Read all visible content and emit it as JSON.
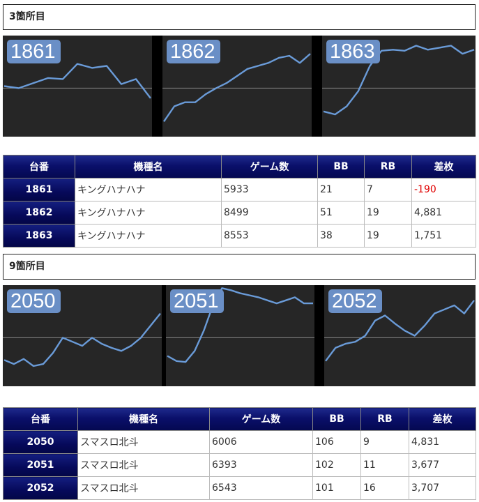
{
  "sections": [
    {
      "title": "3箇所目",
      "columns": [
        "台番",
        "機種名",
        "ゲーム数",
        "BB",
        "RB",
        "差枚"
      ],
      "machines": [
        {
          "number": "1861",
          "name": "キングハナハナ",
          "games": "5933",
          "bb": "21",
          "rb": "7",
          "diff": "-190",
          "diff_negative": true
        },
        {
          "number": "1862",
          "name": "キングハナハナ",
          "games": "8499",
          "bb": "51",
          "rb": "19",
          "diff": "4,881",
          "diff_negative": false
        },
        {
          "number": "1863",
          "name": "キングハナハナ",
          "games": "8553",
          "bb": "38",
          "rb": "19",
          "diff": "1,751",
          "diff_negative": false
        }
      ],
      "graphs": [
        {
          "label": "1861",
          "trend": [
            0.5,
            0.48,
            0.53,
            0.58,
            0.57,
            0.72,
            0.68,
            0.7,
            0.52,
            0.57,
            0.38
          ]
        },
        {
          "label": "1862",
          "trend": [
            0.15,
            0.3,
            0.34,
            0.34,
            0.42,
            0.48,
            0.53,
            0.6,
            0.67,
            0.7,
            0.73,
            0.78,
            0.8,
            0.73,
            0.82
          ]
        },
        {
          "label": "1863",
          "trend": [
            0.25,
            0.22,
            0.3,
            0.45,
            0.7,
            0.85,
            0.86,
            0.85,
            0.9,
            0.86,
            0.88,
            0.9,
            0.82,
            0.86
          ]
        }
      ]
    },
    {
      "title": "9箇所目",
      "columns": [
        "台番",
        "機種名",
        "ゲーム数",
        "BB",
        "RB",
        "差枚"
      ],
      "machines": [
        {
          "number": "2050",
          "name": "スマスロ北斗",
          "games": "6006",
          "bb": "106",
          "rb": "9",
          "diff": "4,831",
          "diff_negative": false
        },
        {
          "number": "2051",
          "name": "スマスロ北斗",
          "games": "6393",
          "bb": "102",
          "rb": "11",
          "diff": "3,677",
          "diff_negative": false
        },
        {
          "number": "2052",
          "name": "スマスロ北斗",
          "games": "6543",
          "bb": "101",
          "rb": "16",
          "diff": "3,707",
          "diff_negative": false
        }
      ],
      "graphs": [
        {
          "label": "2050",
          "trend": [
            0.26,
            0.22,
            0.27,
            0.2,
            0.22,
            0.33,
            0.48,
            0.44,
            0.4,
            0.48,
            0.42,
            0.38,
            0.35,
            0.4,
            0.48,
            0.6,
            0.72
          ]
        },
        {
          "label": "2051",
          "trend": [
            0.3,
            0.25,
            0.24,
            0.35,
            0.55,
            0.8,
            0.97,
            0.95,
            0.92,
            0.9,
            0.88,
            0.85,
            0.82,
            0.85,
            0.88,
            0.82,
            0.82
          ]
        },
        {
          "label": "2052",
          "trend": [
            0.25,
            0.38,
            0.42,
            0.44,
            0.5,
            0.65,
            0.7,
            0.62,
            0.55,
            0.5,
            0.6,
            0.72,
            0.76,
            0.8,
            0.72,
            0.85
          ]
        }
      ]
    }
  ],
  "colors": {
    "graph_bg": "#262626",
    "trend_line": "#6a9bd8",
    "zero_line": "#8a8a8a",
    "badge_bg": "#6a8fc6",
    "header_navy": "#040850",
    "negative": "#e00000"
  }
}
